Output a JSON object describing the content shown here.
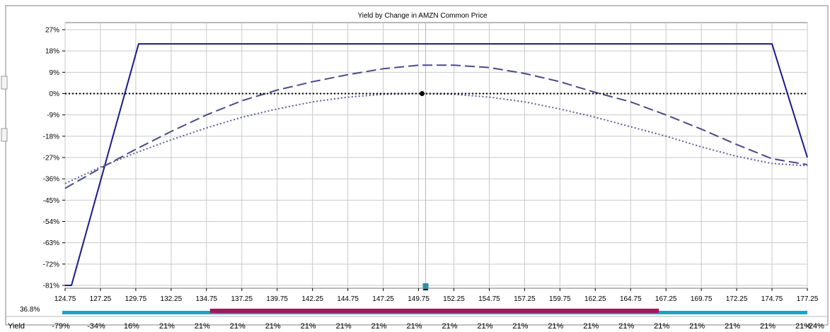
{
  "side_label": "36.8%",
  "yield_row": {
    "label": "Yield",
    "values": [
      "-79%",
      "-34%",
      "16%",
      "21%",
      "21%",
      "21%",
      "21%",
      "21%",
      "21%",
      "21%",
      "21%",
      "21%",
      "21%",
      "21%",
      "21%",
      "21%",
      "21%",
      "21%",
      "21%",
      "21%",
      "21%",
      "21%",
      "-24%"
    ]
  },
  "colors": {
    "series_solid": "#1a1a8c",
    "series_dash": "#4a4a8a",
    "series_dot": "#5a5aa0",
    "zero_line": "#000000",
    "grid": "#c9c9c9",
    "bar_teal": "#1aa3c4",
    "bar_magenta": "#a3165f",
    "marker": "#2e8fa6"
  },
  "chart_data": {
    "type": "line",
    "title": "Yield by Change in AMZN Common Price",
    "xlabel": "",
    "ylabel": "",
    "x_ticks": [
      124.75,
      127.25,
      129.75,
      132.25,
      134.75,
      137.25,
      139.75,
      142.25,
      144.75,
      147.25,
      149.75,
      152.25,
      154.75,
      157.25,
      159.75,
      162.25,
      164.75,
      167.25,
      169.75,
      172.25,
      174.75,
      177.25
    ],
    "y_ticks": [
      "27%",
      "18%",
      "9%",
      "0%",
      "-9%",
      "-18%",
      "-27%",
      "-36%",
      "-45%",
      "-54%",
      "-63%",
      "-72%",
      "-81%"
    ],
    "xlim": [
      124.75,
      177.25
    ],
    "ylim": [
      -81,
      27
    ],
    "grid": true,
    "series": [
      {
        "style": "solid",
        "x": [
          124.75,
          125.2,
          129.95,
          174.75,
          177.25
        ],
        "y": [
          -81,
          -81,
          21,
          21,
          -27
        ]
      },
      {
        "style": "dashed",
        "x": [
          124.75,
          127.25,
          129.75,
          132.25,
          134.75,
          137.25,
          139.75,
          142.25,
          144.75,
          147.25,
          149.75,
          152.25,
          154.75,
          157.25,
          159.75,
          162.25,
          164.75,
          167.25,
          169.75,
          172.25,
          174.75,
          177.25
        ],
        "y": [
          -40,
          -31.5,
          -23.5,
          -16,
          -9,
          -3,
          1.5,
          5,
          8,
          10.5,
          12,
          12,
          11,
          8.5,
          5,
          0.5,
          -3.5,
          -9,
          -15,
          -21.5,
          -27.5,
          -30
        ]
      },
      {
        "style": "dotted",
        "x": [
          124.75,
          127.25,
          129.75,
          132.25,
          134.75,
          137.25,
          139.75,
          142.25,
          144.75,
          147.25,
          149.75,
          152.25,
          154.75,
          157.25,
          159.75,
          162.25,
          164.75,
          167.25,
          169.75,
          172.25,
          174.75,
          177.25
        ],
        "y": [
          -38,
          -31,
          -25,
          -19.5,
          -14.5,
          -10,
          -6.5,
          -3.5,
          -1.5,
          -0.3,
          0,
          -0.3,
          -1.5,
          -3.5,
          -6.5,
          -10,
          -14,
          -18,
          -22.5,
          -26.5,
          -29.5,
          -30.5
        ]
      },
      {
        "style": "zero",
        "x": [
          124.75,
          177.25
        ],
        "y": [
          0,
          0
        ]
      }
    ],
    "current_price_x": 150.25,
    "bar_range": {
      "teal": [
        124.75,
        177.25
      ],
      "magenta": [
        135.0,
        166.75
      ]
    }
  }
}
